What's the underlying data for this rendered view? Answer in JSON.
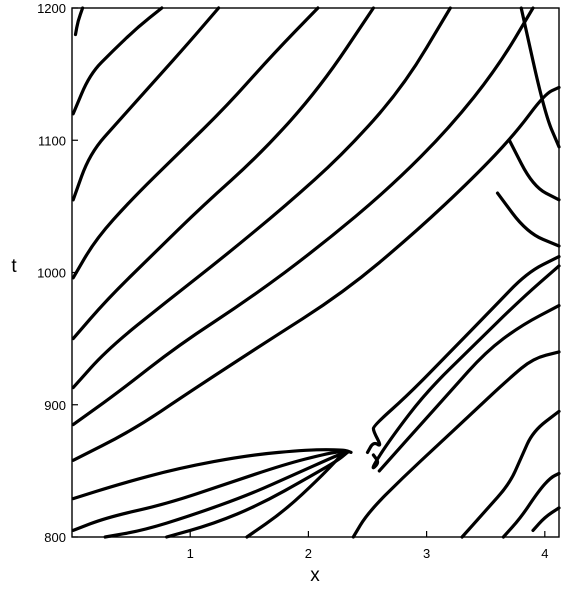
{
  "chart_data": {
    "type": "line",
    "title": "",
    "xlabel": "x",
    "ylabel": "t",
    "xlim": [
      0,
      4.12
    ],
    "ylim": [
      800,
      1200
    ],
    "x_ticks": [
      1,
      2,
      3,
      4
    ],
    "x_tick_labels": [
      "1",
      "2",
      "3",
      "4"
    ],
    "y_ticks": [
      800,
      900,
      1000,
      1100,
      1200
    ],
    "y_tick_labels": [
      "800",
      "900",
      "1000",
      "1100",
      "1200"
    ],
    "grid": false,
    "legend": "none",
    "line_color": "#000000",
    "series": [
      {
        "x": [
          0.03,
          0.05,
          0.09
        ],
        "y": [
          1180,
          1190,
          1200
        ]
      },
      {
        "x": [
          0.01,
          0.15,
          0.35,
          0.55,
          0.76
        ],
        "y": [
          1120,
          1150,
          1168,
          1185,
          1200
        ]
      },
      {
        "x": [
          0.01,
          0.15,
          0.4,
          0.7,
          1.0,
          1.24
        ],
        "y": [
          1055,
          1090,
          1115,
          1145,
          1175,
          1200
        ]
      },
      {
        "x": [
          0.01,
          0.2,
          0.5,
          0.9,
          1.3,
          1.7,
          2.08
        ],
        "y": [
          996,
          1025,
          1055,
          1090,
          1125,
          1165,
          1200
        ]
      },
      {
        "x": [
          0.01,
          0.3,
          0.7,
          1.1,
          1.6,
          2.1,
          2.55
        ],
        "y": [
          950,
          980,
          1015,
          1050,
          1090,
          1140,
          1200
        ]
      },
      {
        "x": [
          0.01,
          0.3,
          0.8,
          1.3,
          1.8,
          2.3,
          2.8,
          3.2
        ],
        "y": [
          913,
          942,
          978,
          1013,
          1050,
          1090,
          1140,
          1200
        ]
      },
      {
        "x": [
          0.01,
          0.4,
          0.9,
          1.5,
          2.1,
          2.7,
          3.2,
          3.6,
          3.9
        ],
        "y": [
          885,
          910,
          945,
          980,
          1020,
          1065,
          1110,
          1155,
          1200
        ]
      },
      {
        "x": [
          0.01,
          0.5,
          1.0,
          1.6,
          2.3,
          2.9,
          3.4,
          3.75,
          4.0,
          4.12
        ],
        "y": [
          858,
          880,
          910,
          945,
          985,
          1030,
          1072,
          1105,
          1135,
          1140
        ]
      },
      {
        "x": [
          0.01,
          0.4,
          0.9,
          1.5,
          2.0,
          2.3,
          2.36
        ],
        "y": [
          829,
          840,
          852,
          862,
          866,
          866,
          864
        ]
      },
      {
        "x": [
          0.01,
          0.3,
          0.8,
          1.3,
          1.8,
          2.15,
          2.3,
          2.33
        ],
        "y": [
          805,
          815,
          825,
          840,
          855,
          863,
          865,
          864
        ]
      },
      {
        "x": [
          0.28,
          0.6,
          1.0,
          1.5,
          1.9,
          2.2,
          2.31
        ],
        "y": [
          800,
          805,
          816,
          832,
          848,
          860,
          864
        ]
      },
      {
        "x": [
          0.8,
          1.2,
          1.6,
          2.0,
          2.25,
          2.33
        ],
        "y": [
          800,
          810,
          825,
          845,
          858,
          864
        ]
      },
      {
        "x": [
          1.48,
          1.8,
          2.1,
          2.28
        ],
        "y": [
          800,
          820,
          845,
          862
        ]
      },
      {
        "x": [
          2.5,
          2.55,
          2.62,
          2.55,
          2.55,
          2.85,
          3.2,
          3.55,
          3.85,
          4.12
        ],
        "y": [
          864,
          872,
          868,
          880,
          884,
          908,
          940,
          972,
          1000,
          1012
        ]
      },
      {
        "x": [
          2.55,
          2.6,
          2.52,
          2.7,
          3.0,
          3.4,
          3.8,
          4.12
        ],
        "y": [
          862,
          856,
          850,
          875,
          910,
          945,
          980,
          1005
        ]
      },
      {
        "x": [
          2.6,
          2.7,
          2.95,
          3.2,
          3.5,
          3.8,
          4.12
        ],
        "y": [
          850,
          860,
          885,
          910,
          940,
          960,
          975
        ]
      },
      {
        "x": [
          2.38,
          2.5,
          2.8,
          3.1,
          3.4,
          3.7,
          3.9,
          4.12
        ],
        "y": [
          800,
          818,
          845,
          870,
          895,
          920,
          935,
          940
        ]
      },
      {
        "x": [
          3.3,
          3.5,
          3.7,
          3.8,
          3.9,
          4.12
        ],
        "y": [
          800,
          820,
          840,
          860,
          880,
          895
        ]
      },
      {
        "x": [
          3.65,
          3.8,
          3.95,
          4.05,
          4.12
        ],
        "y": [
          800,
          815,
          835,
          845,
          848
        ]
      },
      {
        "x": [
          3.8,
          4.0,
          4.12
        ],
        "y": [
          1200,
          1120,
          1095
        ]
      },
      {
        "x": [
          3.7,
          3.9,
          4.12
        ],
        "y": [
          1100,
          1065,
          1055
        ]
      },
      {
        "x": [
          3.6,
          3.85,
          4.12
        ],
        "y": [
          1060,
          1030,
          1020
        ]
      },
      {
        "x": [
          3.9,
          4.0,
          4.12
        ],
        "y": [
          805,
          815,
          822
        ]
      }
    ]
  }
}
